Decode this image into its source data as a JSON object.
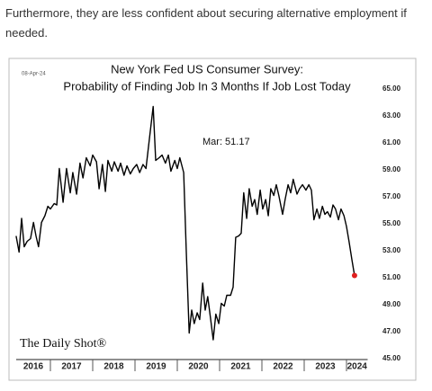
{
  "intro": "Furthermore, they are less confident about securing alternative employment if needed.",
  "chart_data": {
    "type": "line",
    "title": "New York Fed US Consumer Survey:",
    "subtitle": "Probability of Finding Job In 3 Months If Job Lost Today",
    "date_label": "08-Apr-24",
    "annotation": "Mar:  51.17",
    "source": "The Daily Shot®",
    "x": [
      2016.19,
      2016.26,
      2016.32,
      2016.38,
      2016.45,
      2016.53,
      2016.6,
      2016.66,
      2016.72,
      2016.79,
      2016.87,
      2016.94,
      2017.0,
      2017.09,
      2017.15,
      2017.21,
      2017.3,
      2017.38,
      2017.47,
      2017.53,
      2017.62,
      2017.7,
      2017.77,
      2017.85,
      2017.94,
      2018.0,
      2018.09,
      2018.15,
      2018.23,
      2018.3,
      2018.36,
      2018.45,
      2018.51,
      2018.6,
      2018.66,
      2018.74,
      2018.81,
      2018.89,
      2018.96,
      2019.04,
      2019.11,
      2019.19,
      2019.26,
      2019.34,
      2019.43,
      2019.49,
      2019.57,
      2019.64,
      2019.72,
      2019.79,
      2019.85,
      2019.94,
      2020.0,
      2020.06,
      2020.15,
      2020.21,
      2020.28,
      2020.34,
      2020.4,
      2020.47,
      2020.53,
      2020.6,
      2020.66,
      2020.72,
      2020.79,
      2020.85,
      2020.91,
      2020.98,
      2021.04,
      2021.11,
      2021.17,
      2021.26,
      2021.32,
      2021.38,
      2021.45,
      2021.51,
      2021.57,
      2021.64,
      2021.7,
      2021.77,
      2021.83,
      2021.89,
      2021.96,
      2022.02,
      2022.09,
      2022.15,
      2022.21,
      2022.28,
      2022.34,
      2022.4,
      2022.49,
      2022.55,
      2022.62,
      2022.68,
      2022.74,
      2022.83,
      2022.89,
      2022.96,
      2023.04,
      2023.11,
      2023.17,
      2023.23,
      2023.3,
      2023.36,
      2023.43,
      2023.49,
      2023.55,
      2023.62,
      2023.68,
      2023.74,
      2023.81,
      2023.87,
      2023.94,
      2024.0,
      2024.06,
      2024.13,
      2024.19
    ],
    "series": [
      {
        "name": "Probability of Finding Job",
        "color": "#000000",
        "values": [
          54.1,
          52.9,
          55.4,
          53.3,
          53.7,
          53.9,
          55.1,
          54.1,
          53.3,
          55.1,
          55.6,
          56.3,
          56.1,
          56.5,
          56.4,
          59.1,
          56.6,
          59.1,
          57.3,
          58.8,
          57.2,
          59.5,
          58.4,
          59.9,
          59.3,
          60.1,
          59.6,
          57.6,
          59.4,
          57.4,
          59.7,
          58.9,
          59.6,
          58.9,
          59.5,
          58.6,
          59.3,
          58.7,
          59.1,
          59.4,
          58.8,
          59.4,
          59.1,
          61.3,
          63.7,
          59.7,
          59.9,
          60.1,
          59.5,
          60.1,
          58.9,
          59.7,
          59.1,
          59.9,
          58.8,
          53.1,
          46.9,
          48.6,
          47.6,
          48.4,
          47.9,
          50.6,
          48.6,
          49.6,
          47.9,
          46.4,
          48.3,
          47.6,
          49.1,
          48.9,
          49.7,
          49.7,
          50.3,
          54.0,
          54.1,
          54.3,
          57.3,
          55.4,
          57.6,
          56.3,
          56.8,
          55.7,
          57.5,
          56.1,
          56.8,
          55.6,
          57.6,
          57.1,
          57.9,
          57.1,
          55.7,
          56.8,
          57.9,
          57.3,
          58.3,
          57.2,
          57.6,
          57.9,
          57.5,
          57.9,
          57.5,
          55.3,
          56.1,
          55.4,
          56.3,
          55.7,
          55.9,
          55.5,
          56.4,
          56.1,
          55.3,
          56.1,
          55.6,
          54.8,
          53.7,
          52.3,
          51.17
        ]
      }
    ],
    "highlight_color": "#e02020",
    "xlim": [
      2016,
      2024.5
    ],
    "xticks": [
      2016,
      2017,
      2018,
      2019,
      2020,
      2021,
      2022,
      2023,
      2024
    ],
    "ylim": [
      45,
      65
    ],
    "yticks": [
      {
        "value": 45,
        "label": "45.00"
      },
      {
        "value": 47,
        "label": "47.00"
      },
      {
        "value": 49,
        "label": "49.00"
      },
      {
        "value": 51,
        "label": "51.00"
      },
      {
        "value": 53,
        "label": "53.00"
      },
      {
        "value": 55,
        "label": "55.00"
      },
      {
        "value": 57,
        "label": "57.00"
      },
      {
        "value": 59,
        "label": "59.00"
      },
      {
        "value": 61,
        "label": "61.00"
      },
      {
        "value": 63,
        "label": "63.00"
      },
      {
        "value": 65,
        "label": "65.00"
      }
    ]
  }
}
